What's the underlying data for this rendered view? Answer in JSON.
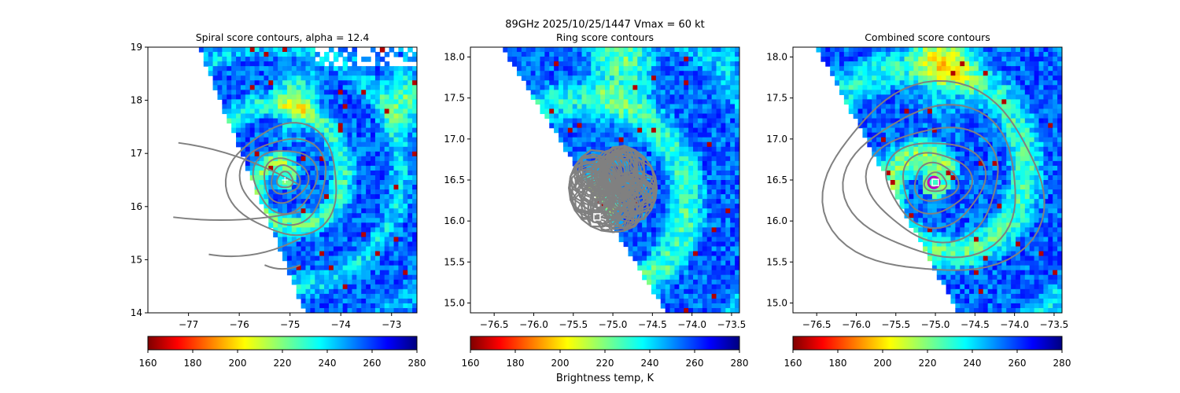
{
  "figure": {
    "suptitle_line1": "89GHz  2025/10/25/1447    Vmax = 60 kt",
    "shared_colorbar_label": "Brightness temp, K"
  },
  "colormap": [
    "#7f0000",
    "#ff0000",
    "#ff8000",
    "#ffff00",
    "#80ff80",
    "#00ffff",
    "#0080ff",
    "#0000ff",
    "#00007f"
  ],
  "contour_color": "#808080",
  "chart_data": [
    {
      "type": "heatmap",
      "title": "Spiral score contours, alpha = 12.4",
      "xlim": [
        -77.8,
        -72.5
      ],
      "ylim": [
        14,
        19
      ],
      "xticks": [
        -77,
        -76,
        -75,
        -74,
        -73
      ],
      "yticks": [
        14,
        15,
        16,
        17,
        18,
        19
      ],
      "colorbar": {
        "vmin": 160,
        "vmax": 280,
        "ticks": [
          160,
          180,
          200,
          220,
          240,
          260,
          280
        ],
        "label": ""
      },
      "center_marker": {
        "x": -75.1,
        "y": 16.5,
        "marker": "plus"
      }
    },
    {
      "type": "heatmap",
      "title": "Ring score contours",
      "xlim": [
        -76.8,
        -73.4
      ],
      "ylim": [
        14.88,
        18.12
      ],
      "xticks": [
        -76.5,
        -76.0,
        -75.5,
        -75.0,
        -74.5,
        -74.0,
        -73.5
      ],
      "yticks": [
        15.0,
        15.5,
        16.0,
        16.5,
        17.0,
        17.5,
        18.0
      ],
      "colorbar": {
        "vmin": 160,
        "vmax": 280,
        "ticks": [
          160,
          180,
          200,
          220,
          240,
          260,
          280
        ],
        "label": "Brightness temp, K"
      },
      "center_marker": {
        "x": -75.2,
        "y": 16.05,
        "marker": "square"
      }
    },
    {
      "type": "heatmap",
      "title": "Combined score contours",
      "xlim": [
        -76.8,
        -73.4
      ],
      "ylim": [
        14.88,
        18.12
      ],
      "xticks": [
        -76.5,
        -76.0,
        -75.5,
        -75.0,
        -74.5,
        -74.0,
        -73.5
      ],
      "yticks": [
        15.0,
        15.5,
        16.0,
        16.5,
        17.0,
        17.5,
        18.0
      ],
      "colorbar": {
        "vmin": 160,
        "vmax": 280,
        "ticks": [
          160,
          180,
          200,
          220,
          240,
          260,
          280
        ],
        "label": ""
      },
      "center_marker": {
        "x": -75.0,
        "y": 16.47,
        "marker": "square"
      }
    }
  ]
}
